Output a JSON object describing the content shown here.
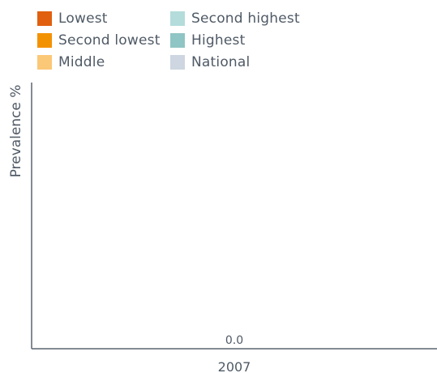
{
  "chart_data": {
    "type": "bar",
    "title": "",
    "xlabel": "",
    "ylabel": "Prevalence %",
    "categories": [
      "2007"
    ],
    "series": [
      {
        "name": "Lowest",
        "color": "#e0600f",
        "values": [
          0.0
        ]
      },
      {
        "name": "Second lowest",
        "color": "#f39200",
        "values": [
          0.0
        ]
      },
      {
        "name": "Middle",
        "color": "#fbc877",
        "values": [
          0.0
        ]
      },
      {
        "name": "Second highest",
        "color": "#b3dcdb",
        "values": [
          0.0
        ]
      },
      {
        "name": "Highest",
        "color": "#8fc5c4",
        "values": [
          0.0
        ]
      },
      {
        "name": "National",
        "color": "#cdd6e1",
        "values": [
          0.0
        ]
      }
    ],
    "data_labels": [
      "0.0"
    ],
    "ylim": [
      0,
      1
    ],
    "grid": false,
    "legend_position": "top-left"
  },
  "colors": {
    "axis": "#5a6570",
    "text": "#4f5a66"
  }
}
